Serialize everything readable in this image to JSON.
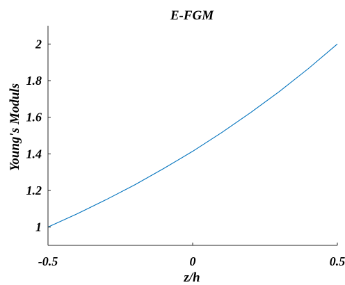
{
  "chart_data": {
    "type": "line",
    "title": "E-FGM",
    "xlabel": "z/h",
    "ylabel": "Young's Moduls",
    "xlim": [
      -0.5,
      0.5
    ],
    "ylim": [
      0.9,
      2.1
    ],
    "xticks": [
      -0.5,
      0,
      0.5
    ],
    "xtick_labels": [
      "-0.5",
      "0",
      "0.5"
    ],
    "yticks": [
      1,
      1.2,
      1.4,
      1.6,
      1.8,
      2
    ],
    "ytick_labels": [
      "1",
      "1.2",
      "1.4",
      "1.6",
      "1.8",
      "2"
    ],
    "grid": false,
    "box": false,
    "series": [
      {
        "color": "#0072BD",
        "x": [
          -0.5,
          -0.4,
          -0.3,
          -0.2,
          -0.1,
          0,
          0.1,
          0.2,
          0.3,
          0.4,
          0.5
        ],
        "y": [
          1.0,
          1.072,
          1.149,
          1.231,
          1.32,
          1.414,
          1.516,
          1.625,
          1.741,
          1.866,
          2.0
        ]
      }
    ]
  }
}
